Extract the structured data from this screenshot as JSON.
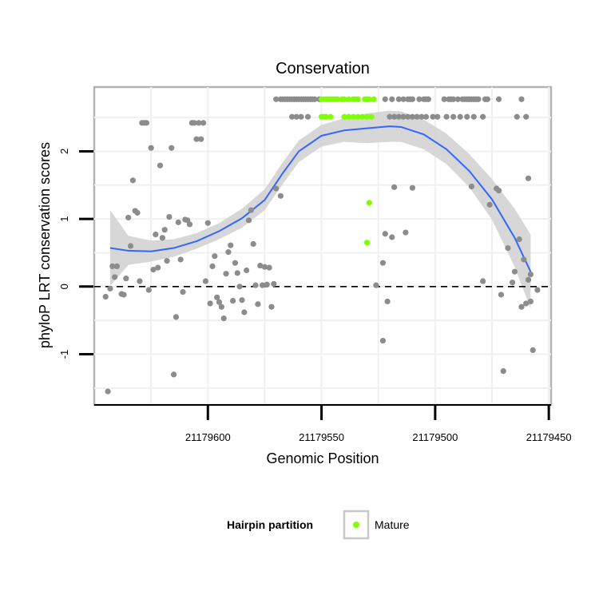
{
  "chart_data": {
    "type": "scatter",
    "title": "Conservation",
    "xlabel": "Genomic Position",
    "ylabel": "phyloP LRT conservation scores",
    "x_reversed": true,
    "xlim": [
      21179650,
      21179449
    ],
    "ylim": [
      -1.75,
      2.95
    ],
    "x_ticks": [
      21179600,
      21179550,
      21179500,
      21179450
    ],
    "x_tick_labels": [
      "21179600",
      "21179550",
      "21179500",
      "21179450"
    ],
    "y_ticks": [
      -1,
      0,
      1,
      2
    ],
    "y_tick_labels": [
      "-1",
      "0",
      "1",
      "2"
    ],
    "grid": true,
    "reference_line": {
      "y": 0,
      "style": "dashed"
    },
    "legend": {
      "title": "Hairpin partition",
      "position": "bottom",
      "entries": [
        {
          "label": "Mature",
          "color": "#7fff00"
        }
      ]
    },
    "colors": {
      "points": "#8c8c8c",
      "mature": "#7fff00",
      "smooth": "#3366ff",
      "ribbon": "#d3d3d3",
      "panel_border": "#b3b3b3",
      "grid": "#f0f0f0"
    },
    "series": [
      {
        "name": "",
        "color": "#8c8c8c",
        "points": [
          [
            21179645,
            -0.15
          ],
          [
            21179644,
            -1.55
          ],
          [
            21179643,
            -0.03
          ],
          [
            21179642,
            0.3
          ],
          [
            21179641,
            0.14
          ],
          [
            21179640,
            0.3
          ],
          [
            21179638,
            -0.11
          ],
          [
            21179637,
            -0.12
          ],
          [
            21179636,
            0.12
          ],
          [
            21179635,
            1.02
          ],
          [
            21179634,
            0.6
          ],
          [
            21179633,
            1.57
          ],
          [
            21179632,
            1.12
          ],
          [
            21179631,
            1.09
          ],
          [
            21179630,
            0.08
          ],
          [
            21179629,
            2.42
          ],
          [
            21179628,
            2.42
          ],
          [
            21179627,
            2.42
          ],
          [
            21179626,
            -0.05
          ],
          [
            21179625,
            2.05
          ],
          [
            21179624,
            0.25
          ],
          [
            21179623,
            0.77
          ],
          [
            21179622,
            0.28
          ],
          [
            21179621,
            1.79
          ],
          [
            21179620,
            0.72
          ],
          [
            21179619,
            0.84
          ],
          [
            21179618,
            0.38
          ],
          [
            21179617,
            1.03
          ],
          [
            21179616,
            2.05
          ],
          [
            21179615,
            -1.3
          ],
          [
            21179614,
            -0.45
          ],
          [
            21179613,
            0.95
          ],
          [
            21179612,
            0.4
          ],
          [
            21179611,
            -0.08
          ],
          [
            21179610,
            0.99
          ],
          [
            21179609,
            0.98
          ],
          [
            21179608,
            0.92
          ],
          [
            21179607,
            2.42
          ],
          [
            21179606,
            2.42
          ],
          [
            21179605,
            2.18
          ],
          [
            21179604,
            2.42
          ],
          [
            21179603,
            2.18
          ],
          [
            21179602,
            2.42
          ],
          [
            21179601,
            0.08
          ],
          [
            21179600,
            0.94
          ],
          [
            21179599,
            -0.25
          ],
          [
            21179598,
            0.3
          ],
          [
            21179597,
            0.45
          ],
          [
            21179596,
            -0.16
          ],
          [
            21179595,
            -0.23
          ],
          [
            21179594,
            -0.3
          ],
          [
            21179593,
            -0.47
          ],
          [
            21179592,
            0.19
          ],
          [
            21179591,
            0.51
          ],
          [
            21179590,
            0.61
          ],
          [
            21179589,
            -0.21
          ],
          [
            21179588,
            0.35
          ],
          [
            21179587,
            0.2
          ],
          [
            21179586,
            0.0
          ],
          [
            21179585,
            -0.2
          ],
          [
            21179584,
            -0.38
          ],
          [
            21179583,
            0.24
          ],
          [
            21179582,
            0.98
          ],
          [
            21179581,
            1.13
          ],
          [
            21179580,
            0.63
          ],
          [
            21179579,
            0.02
          ],
          [
            21179578,
            -0.26
          ],
          [
            21179577,
            0.31
          ],
          [
            21179576,
            0.02
          ],
          [
            21179575,
            0.29
          ],
          [
            21179574,
            0.03
          ],
          [
            21179573,
            0.28
          ],
          [
            21179572,
            -0.3
          ],
          [
            21179571,
            0.04
          ],
          [
            21179570,
            1.45
          ],
          [
            21179568,
            1.34
          ],
          [
            21179570,
            2.77
          ],
          [
            21179568,
            2.77
          ],
          [
            21179567,
            2.77
          ],
          [
            21179566,
            2.77
          ],
          [
            21179565,
            2.77
          ],
          [
            21179564,
            2.77
          ],
          [
            21179563,
            2.77
          ],
          [
            21179562,
            2.77
          ],
          [
            21179561,
            2.77
          ],
          [
            21179560,
            2.77
          ],
          [
            21179559,
            2.77
          ],
          [
            21179558,
            2.77
          ],
          [
            21179557,
            2.77
          ],
          [
            21179556,
            2.77
          ],
          [
            21179555,
            2.77
          ],
          [
            21179554,
            2.77
          ],
          [
            21179553,
            2.77
          ],
          [
            21179551,
            2.77
          ],
          [
            21179522,
            2.77
          ],
          [
            21179519,
            2.77
          ],
          [
            21179516,
            2.77
          ],
          [
            21179514,
            2.77
          ],
          [
            21179512,
            2.77
          ],
          [
            21179511,
            2.77
          ],
          [
            21179510,
            2.77
          ],
          [
            21179507,
            2.77
          ],
          [
            21179505,
            2.77
          ],
          [
            21179504,
            2.77
          ],
          [
            21179503,
            2.77
          ],
          [
            21179496,
            2.77
          ],
          [
            21179494,
            2.77
          ],
          [
            21179493,
            2.77
          ],
          [
            21179492,
            2.77
          ],
          [
            21179490,
            2.77
          ],
          [
            21179488,
            2.77
          ],
          [
            21179487,
            2.77
          ],
          [
            21179486,
            2.77
          ],
          [
            21179485,
            2.77
          ],
          [
            21179484,
            2.77
          ],
          [
            21179483,
            2.77
          ],
          [
            21179482,
            2.77
          ],
          [
            21179481,
            2.77
          ],
          [
            21179478,
            2.77
          ],
          [
            21179477,
            2.77
          ],
          [
            21179472,
            2.77
          ],
          [
            21179462,
            2.77
          ],
          [
            21179563,
            2.51
          ],
          [
            21179561,
            2.51
          ],
          [
            21179559,
            2.51
          ],
          [
            21179556,
            2.51
          ],
          [
            21179520,
            2.51
          ],
          [
            21179518,
            2.51
          ],
          [
            21179516,
            2.51
          ],
          [
            21179514,
            2.51
          ],
          [
            21179512,
            2.51
          ],
          [
            21179510,
            2.51
          ],
          [
            21179508,
            2.51
          ],
          [
            21179506,
            2.51
          ],
          [
            21179504,
            2.51
          ],
          [
            21179501,
            2.51
          ],
          [
            21179499,
            2.51
          ],
          [
            21179495,
            2.51
          ],
          [
            21179492,
            2.51
          ],
          [
            21179489,
            2.51
          ],
          [
            21179486,
            2.51
          ],
          [
            21179483,
            2.51
          ],
          [
            21179479,
            2.51
          ],
          [
            21179464,
            2.51
          ],
          [
            21179460,
            2.51
          ],
          [
            21179526,
            0.02
          ],
          [
            21179523,
            -0.8
          ],
          [
            21179523,
            0.35
          ],
          [
            21179522,
            0.78
          ],
          [
            21179521,
            -0.22
          ],
          [
            21179519,
            0.73
          ],
          [
            21179518,
            1.47
          ],
          [
            21179513,
            0.8
          ],
          [
            21179510,
            1.46
          ],
          [
            21179484,
            1.48
          ],
          [
            21179479,
            0.08
          ],
          [
            21179476,
            1.21
          ],
          [
            21179473,
            1.45
          ],
          [
            21179472,
            1.42
          ],
          [
            21179471,
            -0.12
          ],
          [
            21179470,
            -1.25
          ],
          [
            21179468,
            0.57
          ],
          [
            21179466,
            0.06
          ],
          [
            21179465,
            0.22
          ],
          [
            21179463,
            0.7
          ],
          [
            21179462,
            -0.3
          ],
          [
            21179461,
            0.4
          ],
          [
            21179460,
            -0.25
          ],
          [
            21179459,
            1.6
          ],
          [
            21179459,
            0.1
          ],
          [
            21179458,
            -0.22
          ],
          [
            21179458,
            0.18
          ],
          [
            21179457,
            -0.94
          ],
          [
            21179455,
            -0.05
          ]
        ]
      },
      {
        "name": "Mature",
        "color": "#7fff00",
        "points": [
          [
            21179550,
            2.77
          ],
          [
            21179549,
            2.77
          ],
          [
            21179548,
            2.77
          ],
          [
            21179547,
            2.77
          ],
          [
            21179546,
            2.77
          ],
          [
            21179545,
            2.77
          ],
          [
            21179544,
            2.77
          ],
          [
            21179543,
            2.77
          ],
          [
            21179541,
            2.77
          ],
          [
            21179540,
            2.77
          ],
          [
            21179538,
            2.77
          ],
          [
            21179536,
            2.77
          ],
          [
            21179535,
            2.77
          ],
          [
            21179534,
            2.77
          ],
          [
            21179531,
            2.77
          ],
          [
            21179530,
            2.77
          ],
          [
            21179529,
            2.77
          ],
          [
            21179527,
            2.77
          ],
          [
            21179550,
            2.51
          ],
          [
            21179549,
            2.51
          ],
          [
            21179548,
            2.51
          ],
          [
            21179546,
            2.51
          ],
          [
            21179540,
            2.51
          ],
          [
            21179538,
            2.51
          ],
          [
            21179536,
            2.51
          ],
          [
            21179534,
            2.51
          ],
          [
            21179532,
            2.51
          ],
          [
            21179530,
            2.51
          ],
          [
            21179528,
            2.51
          ],
          [
            21179529,
            1.24
          ],
          [
            21179530,
            0.65
          ]
        ]
      }
    ],
    "smooth": {
      "name": "",
      "color": "#3366ff",
      "points": [
        [
          21179643,
          0.57
        ],
        [
          21179635,
          0.53
        ],
        [
          21179625,
          0.52
        ],
        [
          21179615,
          0.57
        ],
        [
          21179605,
          0.67
        ],
        [
          21179595,
          0.82
        ],
        [
          21179585,
          1.01
        ],
        [
          21179575,
          1.28
        ],
        [
          21179567,
          1.68
        ],
        [
          21179560,
          2.0
        ],
        [
          21179550,
          2.23
        ],
        [
          21179540,
          2.31
        ],
        [
          21179530,
          2.34
        ],
        [
          21179520,
          2.37
        ],
        [
          21179515,
          2.36
        ],
        [
          21179505,
          2.25
        ],
        [
          21179495,
          2.03
        ],
        [
          21179485,
          1.71
        ],
        [
          21179475,
          1.29
        ],
        [
          21179465,
          0.72
        ],
        [
          21179458,
          0.22
        ]
      ],
      "ribbon": [
        [
          21179643,
          0.01,
          1.13
        ],
        [
          21179635,
          0.32,
          0.75
        ],
        [
          21179625,
          0.37,
          0.68
        ],
        [
          21179615,
          0.44,
          0.7
        ],
        [
          21179605,
          0.56,
          0.79
        ],
        [
          21179595,
          0.7,
          0.94
        ],
        [
          21179585,
          0.87,
          1.15
        ],
        [
          21179575,
          1.13,
          1.44
        ],
        [
          21179567,
          1.52,
          1.84
        ],
        [
          21179560,
          1.84,
          2.16
        ],
        [
          21179550,
          2.07,
          2.39
        ],
        [
          21179540,
          2.14,
          2.49
        ],
        [
          21179530,
          2.12,
          2.56
        ],
        [
          21179520,
          2.14,
          2.6
        ],
        [
          21179515,
          2.14,
          2.59
        ],
        [
          21179505,
          2.03,
          2.47
        ],
        [
          21179495,
          1.81,
          2.26
        ],
        [
          21179485,
          1.47,
          1.96
        ],
        [
          21179475,
          0.99,
          1.59
        ],
        [
          21179465,
          0.29,
          1.15
        ],
        [
          21179458,
          -0.33,
          0.77
        ]
      ]
    }
  }
}
